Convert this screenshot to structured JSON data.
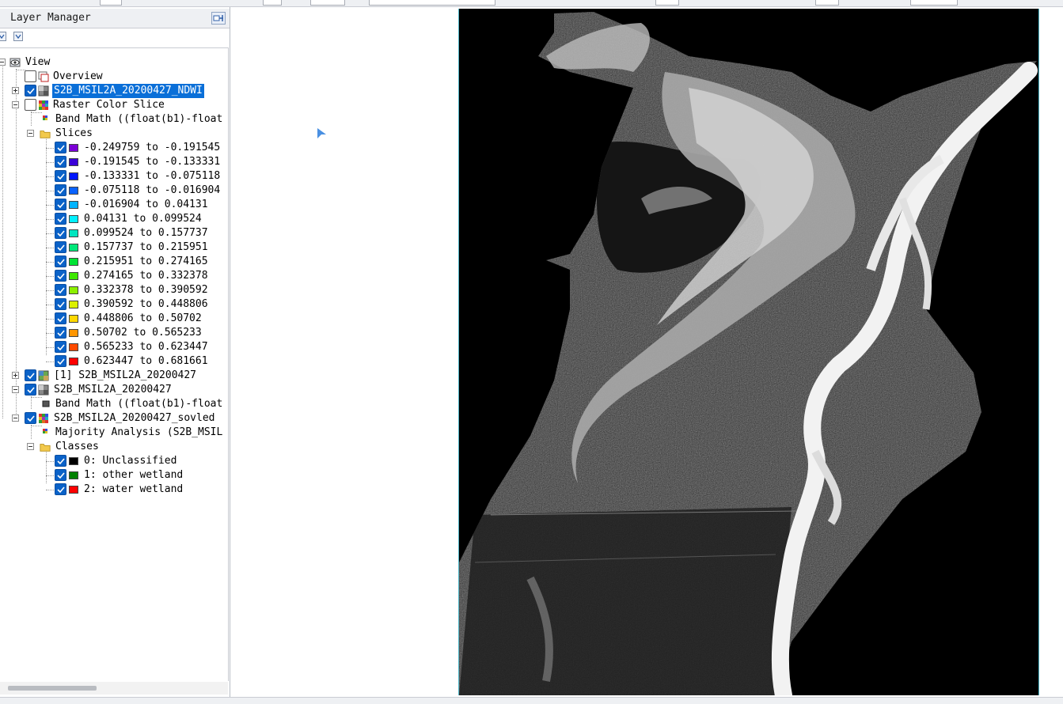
{
  "panel": {
    "title": "Layer Manager",
    "pin_icon": "pin-icon"
  },
  "tree": {
    "view": "View",
    "overview": "Overview",
    "ndwi": "S2B_MSIL2A_20200427_NDWI",
    "color_slice": "Raster Color Slice",
    "band_math_1": "Band Math ((float(b1)-float",
    "slices_folder": "Slices",
    "slices": [
      {
        "label": "-0.249759 to -0.191545",
        "color": "#7b00d6"
      },
      {
        "label": "-0.191545 to -0.133331",
        "color": "#3a00d8"
      },
      {
        "label": "-0.133331 to -0.075118",
        "color": "#0016ff"
      },
      {
        "label": "-0.075118 to -0.016904",
        "color": "#0a62ff"
      },
      {
        "label": "-0.016904 to 0.04131",
        "color": "#00b4ff"
      },
      {
        "label": "0.04131 to 0.099524",
        "color": "#00f0ff"
      },
      {
        "label": "0.099524 to 0.157737",
        "color": "#00e6c0"
      },
      {
        "label": "0.157737 to 0.215951",
        "color": "#00e87a"
      },
      {
        "label": "0.215951 to 0.274165",
        "color": "#00e434"
      },
      {
        "label": "0.274165 to 0.332378",
        "color": "#3ee800"
      },
      {
        "label": "0.332378 to 0.390592",
        "color": "#8cf000"
      },
      {
        "label": "0.390592 to 0.448806",
        "color": "#dcf000"
      },
      {
        "label": "0.448806 to 0.50702",
        "color": "#ffd800"
      },
      {
        "label": "0.50702 to 0.565233",
        "color": "#ff9600"
      },
      {
        "label": "0.565233 to 0.623447",
        "color": "#ff4a00"
      },
      {
        "label": "0.623447 to 0.681661",
        "color": "#ff0000"
      }
    ],
    "layer1": "[1] S2B_MSIL2A_20200427",
    "layer2": "S2B_MSIL2A_20200427",
    "band_math_2": "Band Math ((float(b1)-float",
    "solved": "S2B_MSIL2A_20200427_sovled",
    "majority": "Majority Analysis (S2B_MSIL",
    "classes_folder": "Classes",
    "classes": [
      {
        "label": "0: Unclassified",
        "color": "#000000"
      },
      {
        "label": "1: other wetland",
        "color": "#008000"
      },
      {
        "label": "2: water wetland",
        "color": "#ff0000"
      }
    ]
  },
  "map": {
    "image_icon": "raster-image",
    "cursor_icon": "cursor-arrow-icon"
  }
}
